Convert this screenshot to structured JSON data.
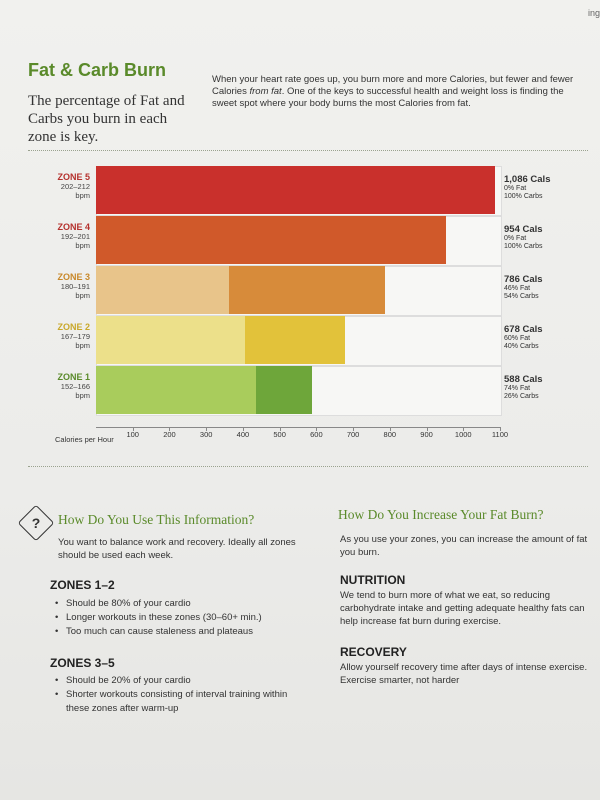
{
  "corner_tab": "ing",
  "title": "Fat & Carb Burn",
  "lead": "The percentage of Fat and Carbs you burn in each zone is key.",
  "intro": {
    "part1": "When your heart rate goes up, you burn more and more Calories, but fewer and fewer Calories ",
    "emph": "from fat",
    "part2": ". One of the keys to successful health and weight loss is finding the sweet spot where your body burns the most Calories from fat."
  },
  "colors": {
    "accent": "#5a8a2a",
    "zone5": "#c9302c",
    "zone4": "#d0592a",
    "zone3_fat": "#e8c48a",
    "zone3_carb": "#d78b3a",
    "zone2_fat": "#ece08a",
    "zone2_carb": "#e2c23a",
    "zone1_fat": "#a9cc5c",
    "zone1_carb": "#6ea63a"
  },
  "chart_data": {
    "type": "bar",
    "orientation": "horizontal",
    "stacked": true,
    "xlabel": "Calories per Hour",
    "xlim": [
      0,
      1100
    ],
    "ticks": [
      "100",
      "200",
      "300",
      "400",
      "500",
      "600",
      "700",
      "800",
      "900",
      "1000",
      "1100"
    ],
    "categories": [
      "ZONE 5",
      "ZONE 4",
      "ZONE 3",
      "ZONE 2",
      "ZONE 1"
    ],
    "zones": [
      {
        "name": "ZONE 5",
        "range": "202–212",
        "unit": "bpm",
        "cals": "1,086 Cals",
        "fat": "0% Fat",
        "carbs": "100% Carbs",
        "total": 1086,
        "fat_cals": 0,
        "carb_cals": 1086
      },
      {
        "name": "ZONE 4",
        "range": "192–201",
        "unit": "bpm",
        "cals": "954 Cals",
        "fat": "0% Fat",
        "carbs": "100% Carbs",
        "total": 954,
        "fat_cals": 0,
        "carb_cals": 954
      },
      {
        "name": "ZONE 3",
        "range": "180–191",
        "unit": "bpm",
        "cals": "786 Cals",
        "fat": "46% Fat",
        "carbs": "54% Carbs",
        "total": 786,
        "fat_cals": 362,
        "carb_cals": 424
      },
      {
        "name": "ZONE 2",
        "range": "167–179",
        "unit": "bpm",
        "cals": "678 Cals",
        "fat": "60% Fat",
        "carbs": "40% Carbs",
        "total": 678,
        "fat_cals": 407,
        "carb_cals": 271
      },
      {
        "name": "ZONE 1",
        "range": "152–166",
        "unit": "bpm",
        "cals": "588 Cals",
        "fat": "74% Fat",
        "carbs": "26% Carbs",
        "total": 588,
        "fat_cals": 435,
        "carb_cals": 153
      }
    ]
  },
  "left": {
    "heading": "How Do You Use This Information?",
    "intro": "You want to balance work and recovery. Ideally all zones should be used each week.",
    "z12_heading": "ZONES 1–2",
    "z12_items": [
      "Should be 80% of your cardio",
      "Longer workouts in these zones (30–60+ min.)",
      "Too much can cause staleness and plateaus"
    ],
    "z35_heading": "ZONES 3–5",
    "z35_items": [
      "Should be 20% of your cardio",
      "Shorter workouts consisting of interval training within these zones after warm-up"
    ]
  },
  "right": {
    "heading": "How Do You Increase Your Fat Burn?",
    "intro": "As you use your zones, you can increase the amount of fat you burn.",
    "nutrition_heading": "NUTRITION",
    "nutrition_text": "We tend to burn more of what we eat, so reducing carbohydrate intake and getting adequate healthy fats can help increase fat burn during exercise.",
    "recovery_heading": "RECOVERY",
    "recovery_text": "Allow yourself recovery time after days of intense exercise. Exercise smarter, not harder"
  }
}
